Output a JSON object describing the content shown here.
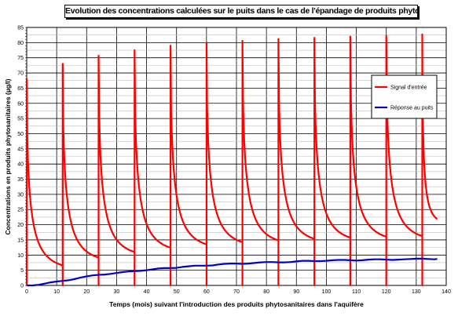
{
  "chart_data": {
    "type": "line",
    "title": "Evolution des concentrations calculées sur le puits dans le cas de l'épandage de produits phytosanitaires",
    "xlabel": "Temps (mois) suivant l'introduction des produits phytosanitaires dans l'aquifère",
    "ylabel": "Concentrations en produits phytosanitaires (µg/l)",
    "xlim": [
      0,
      140
    ],
    "ylim": [
      0,
      85
    ],
    "x_ticks": [
      "0",
      "10",
      "20",
      "30",
      "40",
      "50",
      "60",
      "70",
      "80",
      "90",
      "100",
      "110",
      "120",
      "130",
      "140"
    ],
    "y_ticks": [
      "0",
      "5",
      "10",
      "15",
      "20",
      "25",
      "30",
      "35",
      "40",
      "45",
      "50",
      "55",
      "60",
      "65",
      "70",
      "75",
      "80",
      "85"
    ],
    "grid": true,
    "legend_position": "right",
    "series": [
      {
        "name": "Signal d'entrée",
        "color": "#ff0000",
        "shape": "pulses",
        "pulse_interval": 12,
        "end_x": 137,
        "pulses": [
          {
            "start": 0,
            "peak": 68.0,
            "end": 4.7
          },
          {
            "start": 12,
            "peak": 73.0,
            "end": 7.2
          },
          {
            "start": 24,
            "peak": 75.7,
            "end": 9.0
          },
          {
            "start": 36,
            "peak": 77.5,
            "end": 10.4
          },
          {
            "start": 48,
            "peak": 79.0,
            "end": 11.5
          },
          {
            "start": 60,
            "peak": 80.0,
            "end": 12.2
          },
          {
            "start": 72,
            "peak": 80.6,
            "end": 12.8
          },
          {
            "start": 84,
            "peak": 81.2,
            "end": 13.3
          },
          {
            "start": 96,
            "peak": 81.6,
            "end": 13.7
          },
          {
            "start": 108,
            "peak": 82.0,
            "end": 14.0
          },
          {
            "start": 120,
            "peak": 82.3,
            "end": 14.2
          },
          {
            "start": 132,
            "peak": 82.7,
            "end": 20.0
          }
        ]
      },
      {
        "name": "Réponse au puits",
        "color": "#0000cc",
        "x": [
          0,
          2,
          4,
          6,
          8,
          10,
          12,
          14,
          16,
          18,
          20,
          22,
          24,
          26,
          28,
          30,
          32,
          34,
          36,
          38,
          40,
          42,
          44,
          46,
          48,
          50,
          52,
          54,
          56,
          58,
          60,
          62,
          64,
          66,
          68,
          70,
          72,
          74,
          76,
          78,
          80,
          82,
          84,
          86,
          88,
          90,
          92,
          94,
          96,
          98,
          100,
          102,
          104,
          106,
          108,
          110,
          112,
          114,
          116,
          118,
          120,
          122,
          124,
          126,
          128,
          130,
          132,
          134,
          136,
          137
        ],
        "values": [
          0,
          0,
          0.2,
          0.6,
          1.0,
          1.3,
          1.5,
          1.7,
          2.1,
          2.6,
          3.0,
          3.3,
          3.5,
          3.6,
          3.8,
          4.1,
          4.4,
          4.6,
          4.7,
          4.8,
          5.0,
          5.3,
          5.6,
          5.7,
          5.7,
          5.8,
          6.1,
          6.3,
          6.5,
          6.5,
          6.5,
          6.6,
          6.9,
          7.1,
          7.2,
          7.2,
          7.1,
          7.2,
          7.4,
          7.6,
          7.7,
          7.7,
          7.6,
          7.6,
          7.7,
          7.9,
          8.1,
          8.1,
          8.0,
          8.0,
          8.1,
          8.3,
          8.4,
          8.4,
          8.3,
          8.2,
          8.3,
          8.5,
          8.6,
          8.6,
          8.5,
          8.4,
          8.5,
          8.6,
          8.7,
          8.8,
          8.8,
          8.7,
          8.6,
          8.7
        ]
      }
    ]
  }
}
